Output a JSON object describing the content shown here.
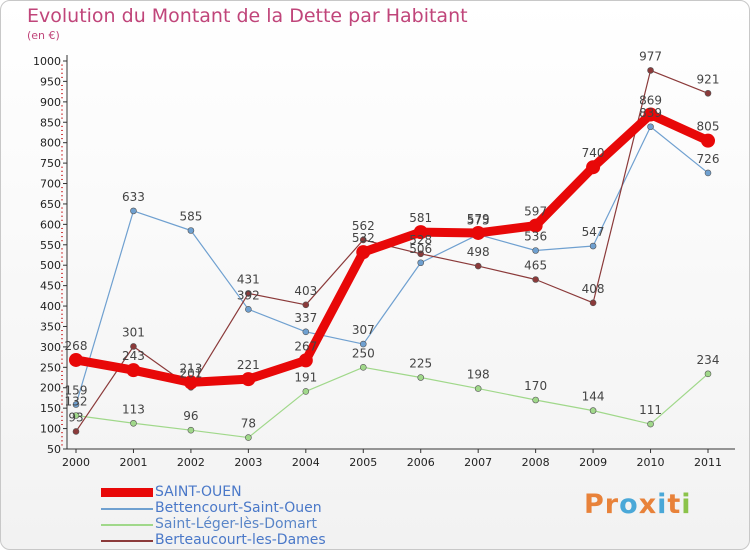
{
  "title": "Evolution du Montant de la Dette par Habitant",
  "subtitle": "(en €)",
  "logo": {
    "text": "Proxiti",
    "colors": [
      "#e8823a",
      "#e8823a",
      "#4aa8d8",
      "#e8823a",
      "#4aa8d8",
      "#e8823a",
      "#8bc34a"
    ]
  },
  "chart_data": {
    "type": "line",
    "x": [
      "2000",
      "2001",
      "2002",
      "2003",
      "2004",
      "2005",
      "2006",
      "2007",
      "2008",
      "2009",
      "2010",
      "2011"
    ],
    "ylim": [
      50,
      1000
    ],
    "yticks": [
      50,
      100,
      150,
      200,
      250,
      300,
      350,
      400,
      450,
      500,
      550,
      600,
      650,
      700,
      750,
      800,
      850,
      900,
      950,
      1000
    ],
    "grid": false,
    "legend_position": "bottom-left",
    "series": [
      {
        "name": "SAINT-OUEN",
        "color": "#e80808",
        "values": [
          268,
          243,
          213,
          221,
          267,
          532,
          581,
          579,
          597,
          740,
          869,
          805
        ]
      },
      {
        "name": "Bettencourt-Saint-Ouen",
        "color": "#6fa0d0",
        "values": [
          159,
          633,
          585,
          392,
          337,
          307,
          506,
          575,
          536,
          547,
          839,
          726
        ]
      },
      {
        "name": "Saint-Léger-lès-Domart",
        "color": "#a0d88a",
        "values": [
          132,
          113,
          96,
          78,
          191,
          250,
          225,
          198,
          170,
          144,
          111,
          234
        ]
      },
      {
        "name": "Berteaucourt-les-Dames",
        "color": "#8b3a3a",
        "values": [
          93,
          301,
          201,
          431,
          403,
          562,
          528,
          498,
          465,
          408,
          977,
          921
        ]
      }
    ]
  }
}
